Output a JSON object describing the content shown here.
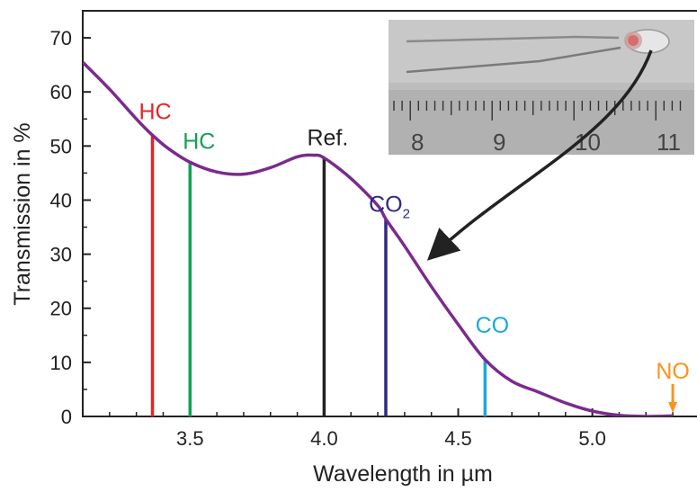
{
  "chart_data": {
    "type": "line",
    "xlabel": "Wavelength in µm",
    "ylabel": "Transmission in %",
    "xlim": [
      3.1,
      5.35
    ],
    "ylim": [
      0,
      75
    ],
    "xticks": [
      3.5,
      4.0,
      4.5,
      5.0
    ],
    "xtick_labels": [
      "3.5",
      "4.0",
      "4.5",
      "5.0"
    ],
    "yticks": [
      0,
      10,
      20,
      30,
      40,
      50,
      60,
      70
    ],
    "ytick_labels": [
      "0",
      "10",
      "20",
      "30",
      "40",
      "50",
      "60",
      "70"
    ],
    "grid": false,
    "series": [
      {
        "color": "#7b2a8e",
        "x": [
          3.1,
          3.2,
          3.3,
          3.36,
          3.42,
          3.5,
          3.6,
          3.7,
          3.8,
          3.9,
          3.96,
          4.0,
          4.1,
          4.2,
          4.23,
          4.3,
          4.4,
          4.5,
          4.6,
          4.7,
          4.8,
          4.9,
          5.0,
          5.1,
          5.2,
          5.3
        ],
        "y": [
          65.5,
          60.5,
          55.0,
          52.0,
          49.5,
          47.0,
          45.2,
          44.8,
          46.0,
          48.0,
          48.3,
          47.8,
          44.0,
          39.0,
          36.5,
          31.5,
          24.0,
          17.0,
          10.5,
          6.5,
          4.5,
          2.5,
          1.0,
          0.2,
          0.0,
          0.1
        ]
      }
    ],
    "markers": [
      {
        "label": "HC",
        "sub": "",
        "x": 3.36,
        "y": 52.0,
        "color": "#e8232a"
      },
      {
        "label": "HC",
        "sub": "",
        "x": 3.5,
        "y": 47.0,
        "color": "#13a150"
      },
      {
        "label": "Ref.",
        "sub": "",
        "x": 4.0,
        "y": 47.8,
        "color": "#222222"
      },
      {
        "label": "CO",
        "sub": "2",
        "x": 4.23,
        "y": 36.5,
        "color": "#2e2a86"
      },
      {
        "label": "CO",
        "sub": "",
        "x": 4.6,
        "y": 10.5,
        "color": "#18a9df"
      },
      {
        "label": "NO",
        "sub": "",
        "x": 5.3,
        "y": 3.0,
        "color": "#f7941e"
      }
    ],
    "inset": {
      "image": "sensor-photo",
      "ruler_labels": [
        "8",
        "9",
        "10",
        "11"
      ]
    }
  }
}
